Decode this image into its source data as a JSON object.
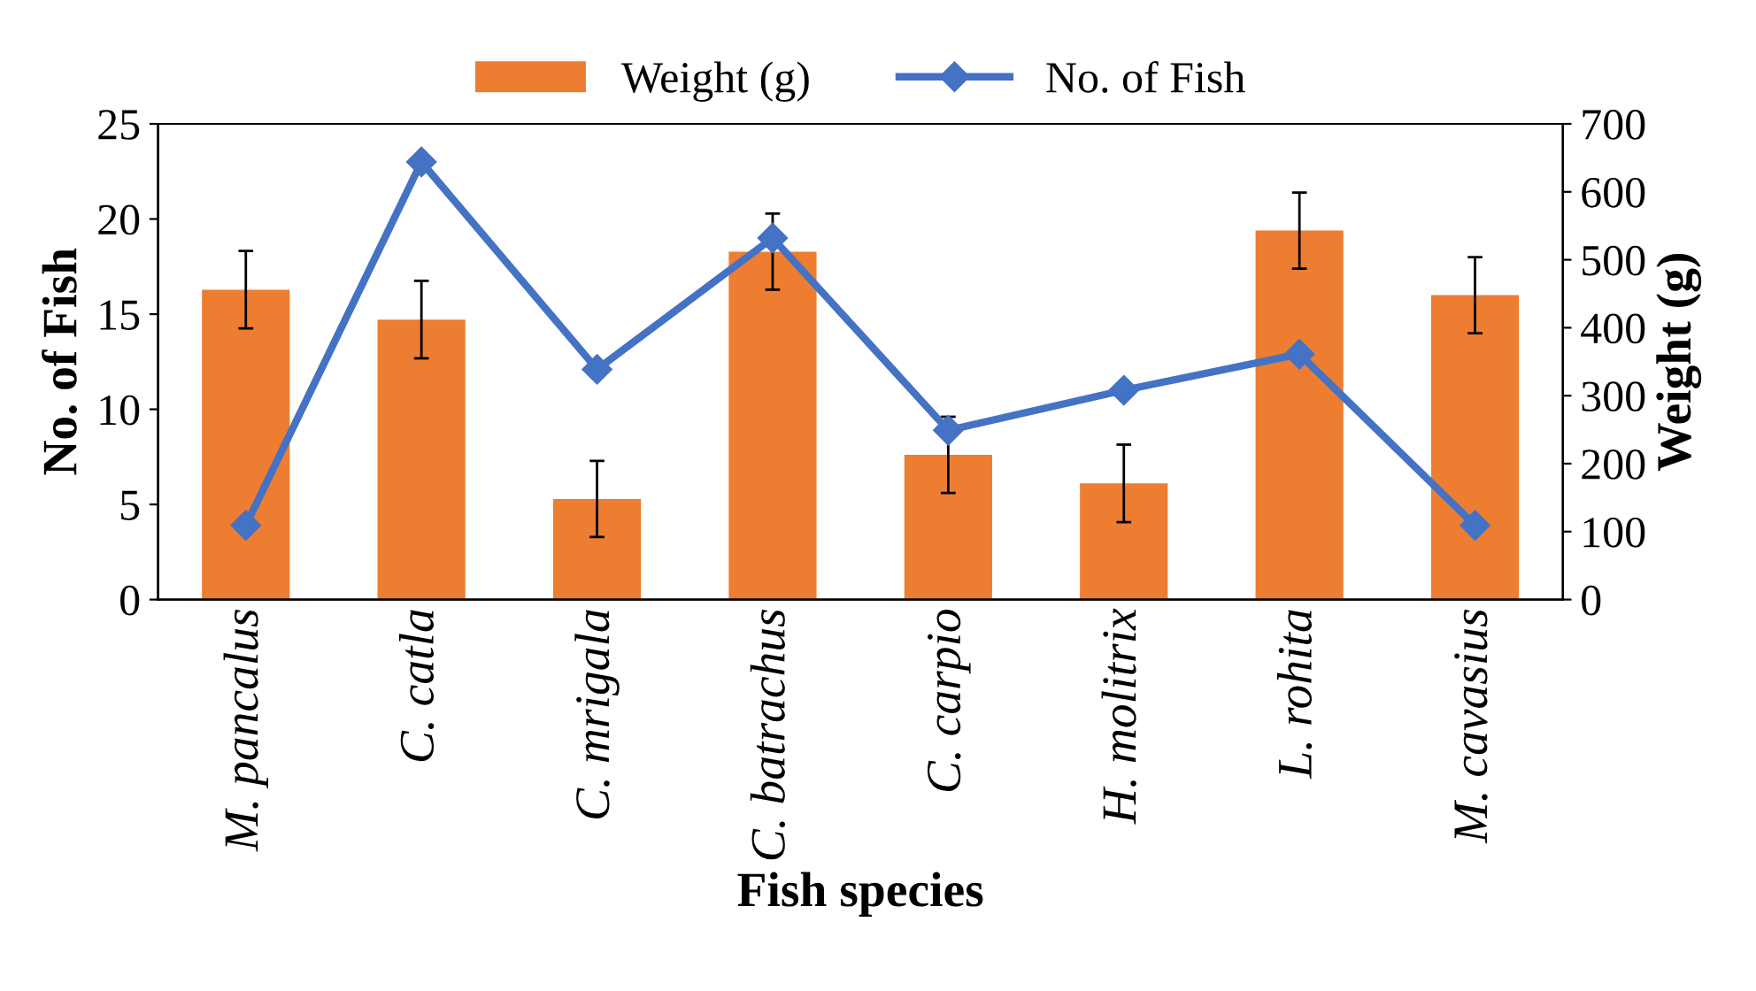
{
  "chart_data": {
    "type": "bar",
    "xlabel": "Fish species",
    "ylabel": "No. of Fish",
    "y2label": "Weight (g)",
    "categories": [
      "M. pancalus",
      "C. catla",
      "C. mrigala",
      "C. batrachus",
      "C. carpio",
      "H. molitrix",
      "L. rohita",
      "M. cavasius"
    ],
    "series": [
      {
        "name": "Weight (g)",
        "axis": "y2",
        "color": "#ed7d31",
        "values": [
          456,
          412,
          148,
          512,
          213,
          171,
          543,
          448
        ],
        "errors": [
          57,
          57,
          56,
          56,
          56,
          57,
          56,
          56
        ]
      },
      {
        "name": "No. of Fish",
        "type": "line",
        "axis": "y",
        "color": "#4472c4",
        "marker": "diamond",
        "line_style": "solid",
        "values": [
          3.9,
          23.0,
          12.1,
          19.0,
          8.9,
          11.0,
          12.9,
          3.9
        ]
      }
    ],
    "ylim": [
      0,
      25
    ],
    "yticks": [
      0,
      5,
      10,
      15,
      20,
      25
    ],
    "y2lim": [
      0,
      700
    ],
    "y2ticks": [
      0,
      100,
      200,
      300,
      400,
      500,
      600,
      700
    ],
    "legend": "top",
    "grid": false
  }
}
